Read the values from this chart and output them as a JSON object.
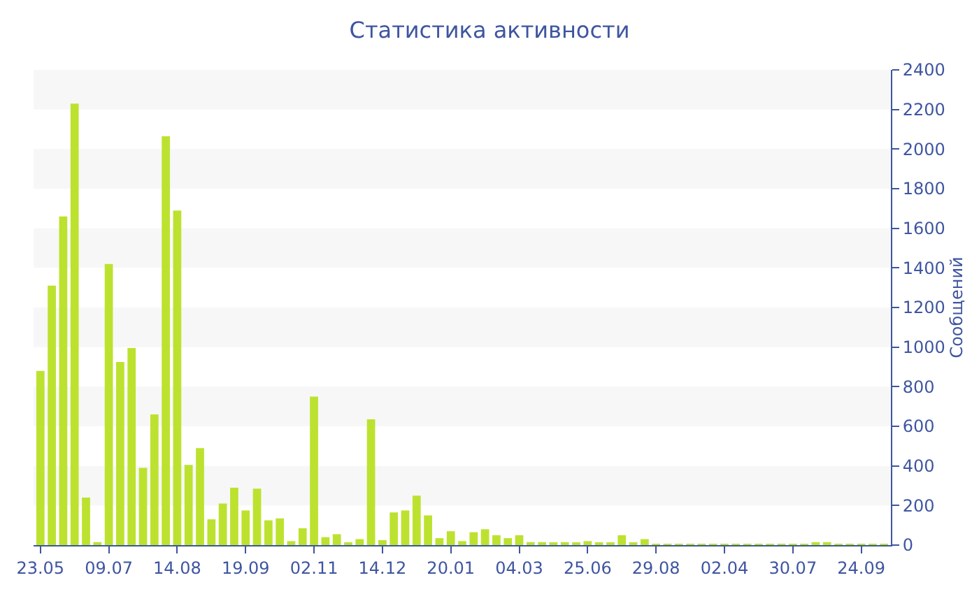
{
  "chart_data": {
    "type": "bar",
    "title": "Статистика активности",
    "ylabel": "Сообщений",
    "categories": [
      "23.05",
      null,
      null,
      null,
      null,
      null,
      "09.07",
      null,
      null,
      null,
      null,
      null,
      "14.08",
      null,
      null,
      null,
      null,
      null,
      "19.09",
      null,
      null,
      null,
      null,
      null,
      "02.11",
      null,
      null,
      null,
      null,
      null,
      "14.12",
      null,
      null,
      null,
      null,
      null,
      "20.01",
      null,
      null,
      null,
      null,
      null,
      "04.03",
      null,
      null,
      null,
      null,
      null,
      "25.06",
      null,
      null,
      null,
      null,
      null,
      "29.08",
      null,
      null,
      null,
      null,
      null,
      "02.04",
      null,
      null,
      null,
      null,
      null,
      "30.07",
      null,
      null,
      null,
      null,
      null,
      "24.09",
      null,
      null
    ],
    "values": [
      880,
      1310,
      1660,
      2230,
      240,
      15,
      1420,
      925,
      995,
      390,
      660,
      2065,
      1690,
      405,
      490,
      130,
      210,
      290,
      175,
      285,
      125,
      135,
      20,
      85,
      750,
      40,
      55,
      10,
      30,
      635,
      25,
      165,
      175,
      250,
      150,
      35,
      70,
      20,
      65,
      80,
      50,
      35,
      50,
      15,
      15,
      10,
      15,
      10,
      20,
      10,
      10,
      50,
      10,
      30,
      5,
      5,
      5,
      5,
      5,
      5,
      5,
      5,
      5,
      5,
      5,
      5,
      5,
      5,
      15,
      15,
      5,
      5,
      5,
      5,
      5
    ],
    "color": "#bce22f",
    "ylim": [
      0,
      2400
    ],
    "yticks": [
      0,
      200,
      400,
      600,
      800,
      1000,
      1200,
      1400,
      1600,
      1800,
      2000,
      2200,
      2400
    ],
    "bands": [
      {
        "axis": "y",
        "from": 200,
        "to": 400,
        "color": "#f7f7f7"
      },
      {
        "axis": "y",
        "from": 600,
        "to": 800,
        "color": "#f7f7f7"
      },
      {
        "axis": "y",
        "from": 1000,
        "to": 1200,
        "color": "#f7f7f7"
      },
      {
        "axis": "y",
        "from": 1400,
        "to": 1600,
        "color": "#f7f7f7"
      },
      {
        "axis": "y",
        "from": 1800,
        "to": 2000,
        "color": "#f7f7f7"
      },
      {
        "axis": "y",
        "from": 2200,
        "to": 2400,
        "color": "#f7f7f7"
      }
    ],
    "grid": false
  }
}
